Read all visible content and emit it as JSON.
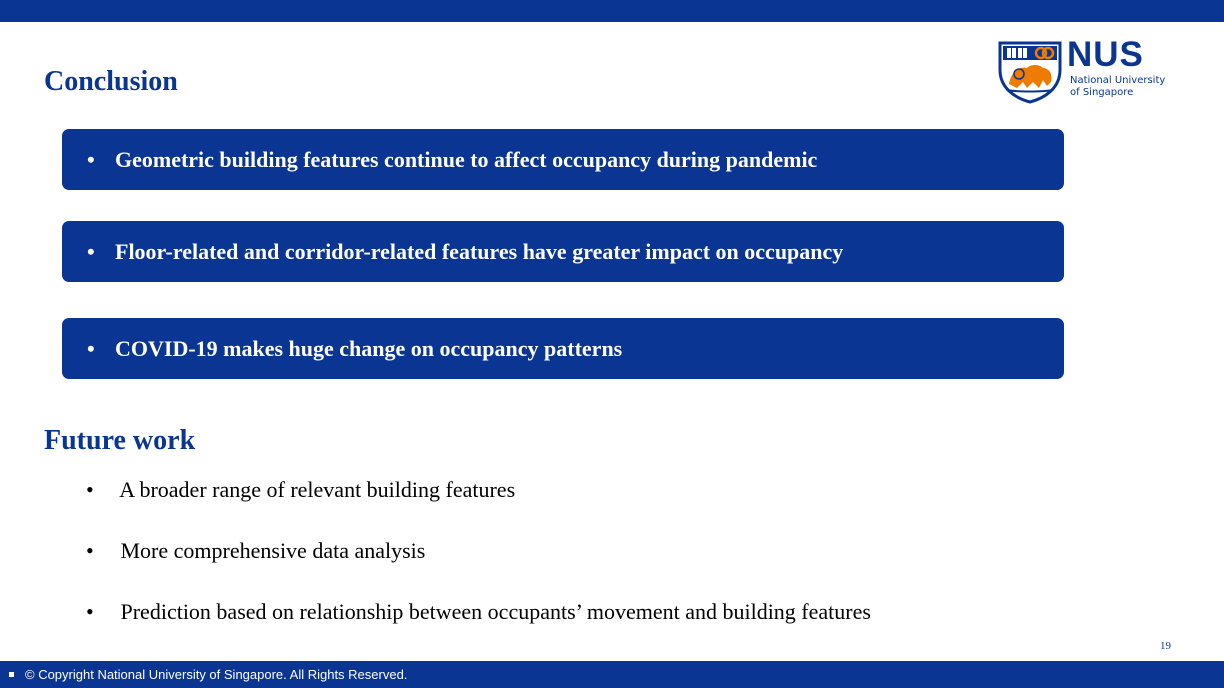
{
  "logo": {
    "name": "NUS",
    "line1": "National University",
    "line2": "of Singapore"
  },
  "conclusion": {
    "title": "Conclusion",
    "bullet": "•",
    "items": [
      "Geometric building features continue to affect occupancy during pandemic",
      "Floor-related and corridor-related features have greater impact on occupancy",
      "COVID-19 makes huge change on occupancy patterns"
    ]
  },
  "future_work": {
    "title": "Future work",
    "bullet": "•",
    "items": [
      "A broader range of relevant building features",
      "More comprehensive data analysis",
      "Prediction based on relationship between occupants’ movement and building features"
    ]
  },
  "page_number": "19",
  "footer": {
    "copyright": "© Copyright National University of Singapore. All Rights Reserved."
  },
  "colors": {
    "brand_blue": "#0a3592",
    "brand_orange": "#ef7c00",
    "text": "#000000",
    "background": "#ffffff"
  }
}
